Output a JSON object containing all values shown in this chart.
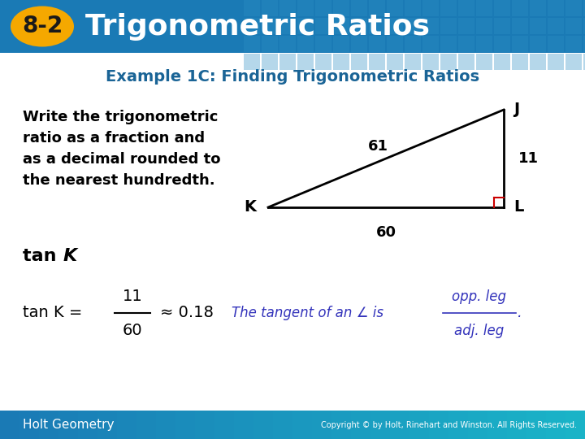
{
  "header_bg_color": "#1a7ab5",
  "header_grid_color": "#2980b9",
  "badge_color": "#f5a800",
  "badge_text": "8-2",
  "header_title": "Trigonometric Ratios",
  "example_title": "Example 1C: Finding Trigonometric Ratios",
  "example_title_color": "#1a6496",
  "body_bg_color": "#ffffff",
  "body_text_line1": "Write the trigonometric",
  "body_text_line2": "ratio as a fraction and",
  "body_text_line3": "as a decimal rounded to",
  "body_text_line4": "the nearest hundredth.",
  "formula_fraction_num": "11",
  "formula_fraction_den": "60",
  "formula_approx": "≈ 0.18",
  "hint_text": "The tangent of an ∠ is",
  "hint_frac_num": "opp. leg",
  "hint_frac_den": "adj. leg",
  "hint_color": "#3333bb",
  "footer_bg_color1": "#1a7ab5",
  "footer_bg_color2": "#1ab5c8",
  "footer_text": "Holt Geometry",
  "copyright_text": "Copyright © by Holt, Rinehart and Winston. All Rights Reserved.",
  "triangle_color": "#000000",
  "right_angle_color": "#cc0000",
  "side_KJ": "61",
  "side_KL": "60",
  "side_JL": "11"
}
